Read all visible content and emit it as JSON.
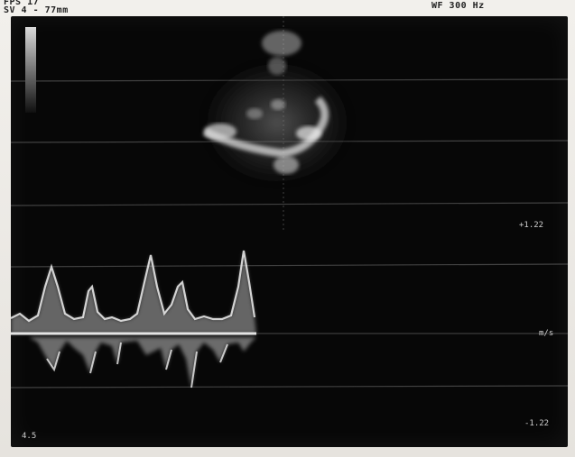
{
  "header": {
    "line1": "FPS  17",
    "line2": "SV  4 - 77mm",
    "right": "WF   300 Hz"
  },
  "scale": {
    "top": "+1.22",
    "unit": "m/s",
    "bottom": "-1.22",
    "corner": "4.5"
  },
  "colors": {
    "screen": "#070707",
    "grid": "#5a5a5a",
    "signal": "#f0f0f0"
  }
}
